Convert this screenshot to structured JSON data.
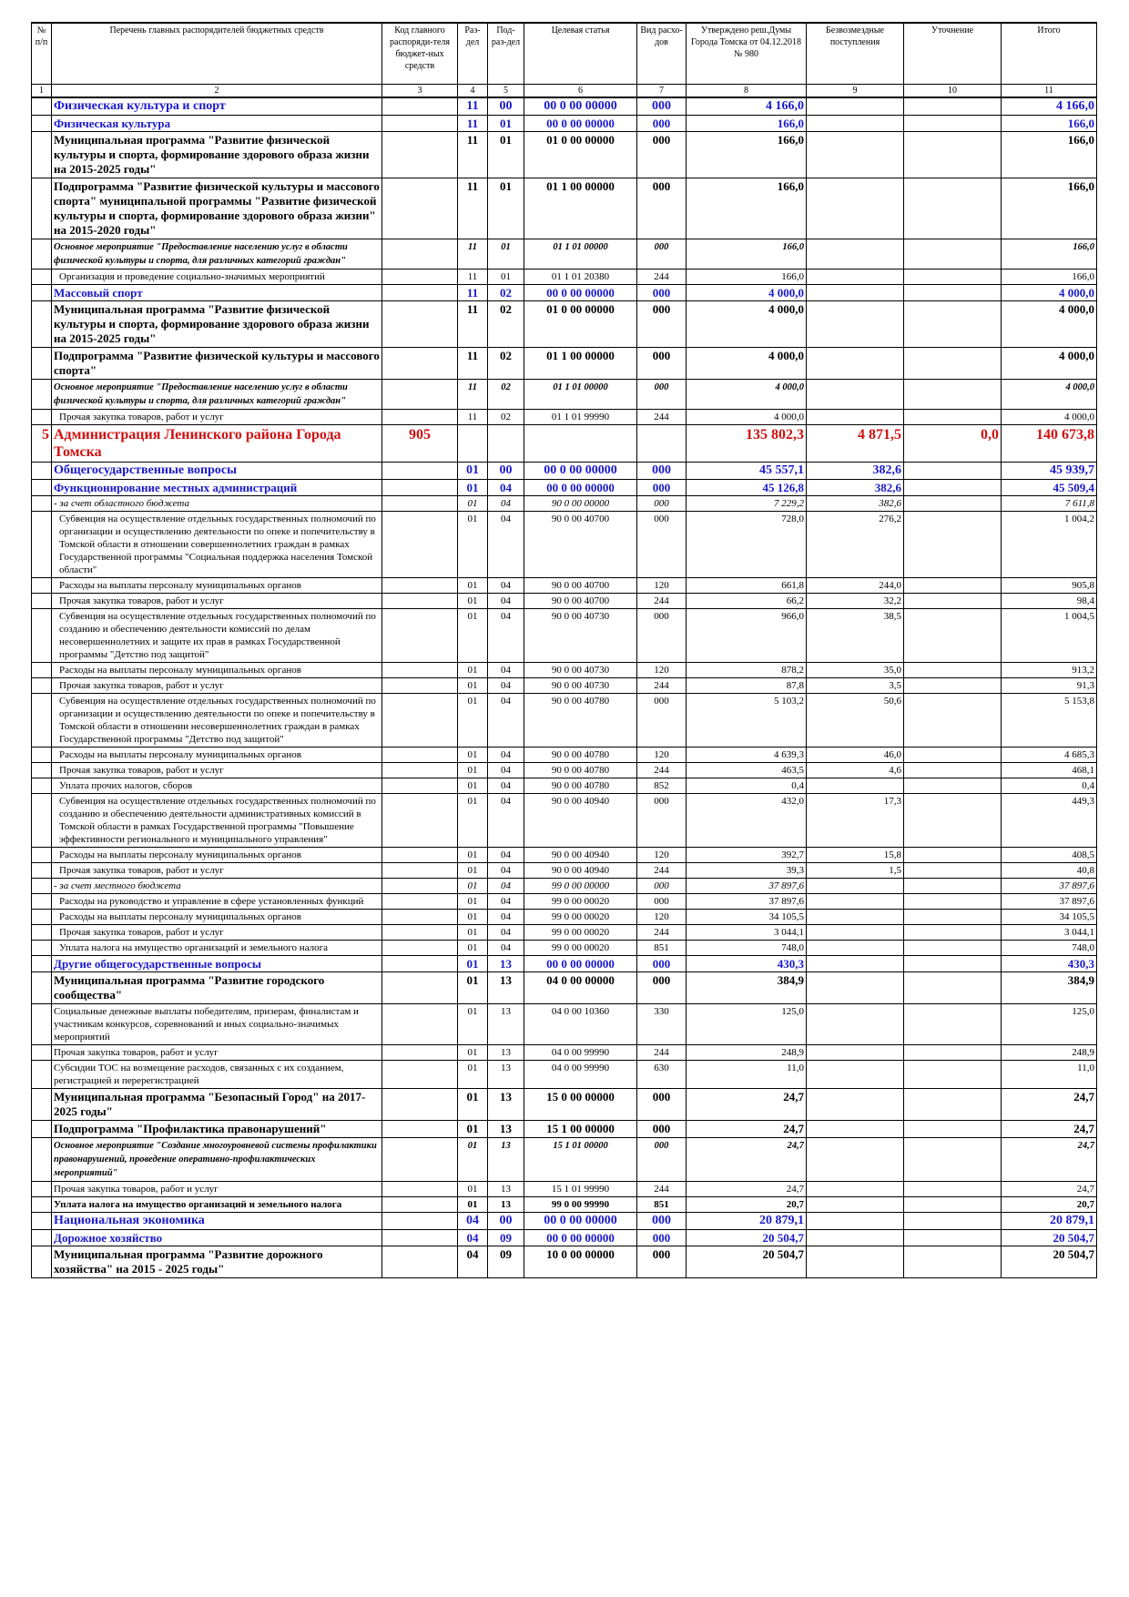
{
  "table": {
    "header": [
      "№ п/п",
      "Перечень главных распорядителей бюджетных средств",
      "Код главного распоряди-теля бюджет-ных средств",
      "Раз-дел",
      "Под-раз-дел",
      "Целевая статья",
      "Вид расхо-дов",
      "Утверждено реш.Думы Города Томска от 04.12.2018 № 980",
      "Безвозмездные поступления",
      "Уточнение",
      "Итого"
    ],
    "column_numbers": [
      1,
      2,
      3,
      4,
      5,
      6,
      7,
      8,
      9,
      10,
      11
    ],
    "rows": [
      {
        "style": "sec",
        "cells": [
          null,
          "Физическая культура и спорт",
          null,
          "11",
          "00",
          "00 0 00 00000",
          "000",
          "4 166,0",
          null,
          null,
          "4 166,0"
        ]
      },
      {
        "style": "sub",
        "cells": [
          null,
          "Физическая культура",
          null,
          "11",
          "01",
          "00 0 00 00000",
          "000",
          "166,0",
          null,
          null,
          "166,0"
        ]
      },
      {
        "style": "prog",
        "cells": [
          null,
          "Муниципальная программа \"Развитие физической культуры и спорта, формирование здорового образа жизни на 2015-2025 годы\"",
          null,
          "11",
          "01",
          "01 0 00 00000",
          "000",
          "166,0",
          null,
          null,
          "166,0"
        ]
      },
      {
        "style": "prog",
        "cells": [
          null,
          "Подпрограмма \"Развитие физической культуры и массового спорта\" муниципальной программы \"Развитие физической культуры и спорта, формирование здорового образа жизни\" на 2015-2020 годы\"",
          null,
          "11",
          "01",
          "01 1 00 00000",
          "000",
          "166,0",
          null,
          null,
          "166,0"
        ]
      },
      {
        "style": "main",
        "cells": [
          null,
          "Основное мероприятие \"Предоставление населению услуг в области физической культуры и спорта, для различных категорий граждан\"",
          null,
          "11",
          "01",
          "01 1 01 00000",
          "000",
          "166,0",
          null,
          null,
          "166,0"
        ]
      },
      {
        "style": "plain",
        "cells": [
          null,
          "Организация и проведение социально-значимых мероприятий",
          null,
          "11",
          "01",
          "01 1 01 20380",
          "244",
          "166,0",
          null,
          null,
          "166,0"
        ]
      },
      {
        "style": "sub",
        "cells": [
          null,
          "Массовый спорт",
          null,
          "11",
          "02",
          "00 0 00 00000",
          "000",
          "4 000,0",
          null,
          null,
          "4 000,0"
        ]
      },
      {
        "style": "prog",
        "cells": [
          null,
          "Муниципальная программа \"Развитие физической культуры и спорта, формирование здорового образа жизни на 2015-2025 годы\"",
          null,
          "11",
          "02",
          "01 0 00 00000",
          "000",
          "4 000,0",
          null,
          null,
          "4 000,0"
        ]
      },
      {
        "style": "prog",
        "cells": [
          null,
          "Подпрограмма \"Развитие физической культуры и массового спорта\"",
          null,
          "11",
          "02",
          "01 1 00 00000",
          "000",
          "4 000,0",
          null,
          null,
          "4 000,0"
        ]
      },
      {
        "style": "main",
        "cells": [
          null,
          "Основное мероприятие \"Предоставление населению услуг в области физической культуры и спорта, для различных категорий граждан\"",
          null,
          "11",
          "02",
          "01 1 01 00000",
          "000",
          "4 000,0",
          null,
          null,
          "4 000,0"
        ]
      },
      {
        "style": "plain",
        "cells": [
          null,
          "Прочая закупка товаров, работ и услуг",
          null,
          "11",
          "02",
          "01 1 01 99990",
          "244",
          "4 000,0",
          null,
          null,
          "4 000,0"
        ]
      },
      {
        "style": "admin",
        "cells": [
          "5",
          "Администрация Ленинского района Города Томска",
          "905",
          null,
          null,
          null,
          null,
          "135 802,3",
          "4 871,5",
          "0,0",
          "140 673,8"
        ]
      },
      {
        "style": "sec",
        "cells": [
          null,
          "Общегосударственные вопросы",
          null,
          "01",
          "00",
          "00 0 00 00000",
          "000",
          "45 557,1",
          "382,6",
          null,
          "45 939,7"
        ]
      },
      {
        "style": "sub",
        "cells": [
          null,
          "Функционирование местных администраций",
          null,
          "01",
          "04",
          "00 0 00 00000",
          "000",
          "45 126,8",
          "382,6",
          null,
          "45 509,4"
        ]
      },
      {
        "style": "italic",
        "cells": [
          null,
          "- за счет областного бюджета",
          null,
          "01",
          "04",
          "90 0 00 00000",
          "000",
          "7 229,2",
          "382,6",
          null,
          "7 611,8"
        ]
      },
      {
        "style": "plain",
        "cells": [
          null,
          "Субвенция на осуществление отдельных государственных полномочий по организации и осуществлению деятельности по опеке и попечительству в Томской области в отношении совершеннолетних граждан в рамках Государственной программы \"Социальная поддержка населения Томской области\"",
          null,
          "01",
          "04",
          "90 0 00 40700",
          "000",
          "728,0",
          "276,2",
          null,
          "1 004,2"
        ]
      },
      {
        "style": "plain",
        "cells": [
          null,
          "Расходы на выплаты персоналу муниципальных органов",
          null,
          "01",
          "04",
          "90 0 00 40700",
          "120",
          "661,8",
          "244,0",
          null,
          "905,8"
        ]
      },
      {
        "style": "plain",
        "cells": [
          null,
          "Прочая закупка товаров, работ и услуг",
          null,
          "01",
          "04",
          "90 0 00 40700",
          "244",
          "66,2",
          "32,2",
          null,
          "98,4"
        ]
      },
      {
        "style": "plain",
        "cells": [
          null,
          "Субвенция на осуществление отдельных государственных полномочий по созданию и обеспечению деятельности комиссий по делам несовершеннолетних и защите их прав в рамках Государственной программы \"Детство под защитой\"",
          null,
          "01",
          "04",
          "90 0 00 40730",
          "000",
          "966,0",
          "38,5",
          null,
          "1 004,5"
        ]
      },
      {
        "style": "plain",
        "cells": [
          null,
          "Расходы на выплаты персоналу муниципальных органов",
          null,
          "01",
          "04",
          "90 0 00 40730",
          "120",
          "878,2",
          "35,0",
          null,
          "913,2"
        ]
      },
      {
        "style": "plain",
        "cells": [
          null,
          "Прочая закупка товаров, работ и услуг",
          null,
          "01",
          "04",
          "90 0 00 40730",
          "244",
          "87,8",
          "3,5",
          null,
          "91,3"
        ]
      },
      {
        "style": "plain",
        "cells": [
          null,
          "Субвенция на осуществление отдельных государственных полномочий по организации и осуществлению деятельности по опеке и попечительству в Томской области в отношении несовершеннолетних граждан в рамках Государственной программы \"Детство под защитой\"",
          null,
          "01",
          "04",
          "90 0 00 40780",
          "000",
          "5 103,2",
          "50,6",
          null,
          "5 153,8"
        ]
      },
      {
        "style": "plain",
        "cells": [
          null,
          "Расходы на выплаты персоналу муниципальных органов",
          null,
          "01",
          "04",
          "90 0 00 40780",
          "120",
          "4 639,3",
          "46,0",
          null,
          "4 685,3"
        ]
      },
      {
        "style": "plain",
        "cells": [
          null,
          "Прочая закупка товаров, работ и услуг",
          null,
          "01",
          "04",
          "90 0 00 40780",
          "244",
          "463,5",
          "4,6",
          null,
          "468,1"
        ]
      },
      {
        "style": "plain",
        "cells": [
          null,
          "Уплата прочих налогов, сборов",
          null,
          "01",
          "04",
          "90 0 00 40780",
          "852",
          "0,4",
          null,
          null,
          "0,4"
        ]
      },
      {
        "style": "plain",
        "cells": [
          null,
          "Субвенция на осуществление отдельных государственных полномочий по созданию и обеспечению деятельности административных комиссий в Томской области в рамках Государственной программы \"Повышение эффективности регионального и муниципального управления\"",
          null,
          "01",
          "04",
          "90 0 00 40940",
          "000",
          "432,0",
          "17,3",
          null,
          "449,3"
        ]
      },
      {
        "style": "plain",
        "cells": [
          null,
          "Расходы на выплаты персоналу муниципальных органов",
          null,
          "01",
          "04",
          "90 0 00 40940",
          "120",
          "392,7",
          "15,8",
          null,
          "408,5"
        ]
      },
      {
        "style": "plain",
        "cells": [
          null,
          "Прочая закупка товаров, работ и услуг",
          null,
          "01",
          "04",
          "90 0 00 40940",
          "244",
          "39,3",
          "1,5",
          null,
          "40,8"
        ]
      },
      {
        "style": "italic",
        "cells": [
          null,
          "- за счет местного бюджета",
          null,
          "01",
          "04",
          "99 0 00 00000",
          "000",
          "37 897,6",
          null,
          null,
          "37 897,6"
        ]
      },
      {
        "style": "plain",
        "cells": [
          null,
          "Расходы на руководство и управление в сфере установленных функций",
          null,
          "01",
          "04",
          "99 0 00 00020",
          "000",
          "37 897,6",
          null,
          null,
          "37 897,6"
        ]
      },
      {
        "style": "plain",
        "cells": [
          null,
          "Расходы на выплаты персоналу муниципальных органов",
          null,
          "01",
          "04",
          "99 0 00 00020",
          "120",
          "34 105,5",
          null,
          null,
          "34 105,5"
        ]
      },
      {
        "style": "plain",
        "cells": [
          null,
          "Прочая закупка товаров, работ и услуг",
          null,
          "01",
          "04",
          "99 0 00 00020",
          "244",
          "3 044,1",
          null,
          null,
          "3 044,1"
        ]
      },
      {
        "style": "plain",
        "cells": [
          null,
          "Уплата налога на имущество организаций и земельного налога",
          null,
          "01",
          "04",
          "99 0 00 00020",
          "851",
          "748,0",
          null,
          null,
          "748,0"
        ]
      },
      {
        "style": "sub",
        "cells": [
          null,
          "Другие общегосударственные вопросы",
          null,
          "01",
          "13",
          "00 0 00 00000",
          "000",
          "430,3",
          null,
          null,
          "430,3"
        ]
      },
      {
        "style": "prog",
        "cells": [
          null,
          "Муниципальная программа \"Развитие городского сообщества\"",
          null,
          "01",
          "13",
          "04 0 00 00000",
          "000",
          "384,9",
          null,
          null,
          "384,9"
        ]
      },
      {
        "style": "flat",
        "cells": [
          null,
          "Социальные денежные выплаты победителям, призерам, финалистам и участникам конкурсов, соревнований и иных социально-значимых мероприятий",
          null,
          "01",
          "13",
          "04 0 00 10360",
          "330",
          "125,0",
          null,
          null,
          "125,0"
        ]
      },
      {
        "style": "flat",
        "cells": [
          null,
          "Прочая закупка товаров, работ и услуг",
          null,
          "01",
          "13",
          "04 0 00 99990",
          "244",
          "248,9",
          null,
          null,
          "248,9"
        ]
      },
      {
        "style": "flat",
        "cells": [
          null,
          "Субсидии ТОС на возмещение расходов, связанных с их созданием, регистрацией и перерегистрацией",
          null,
          "01",
          "13",
          "04 0 00 99990",
          "630",
          "11,0",
          null,
          null,
          "11,0"
        ]
      },
      {
        "style": "prog",
        "cells": [
          null,
          "Муниципальная программа \"Безопасный Город\" на 2017- 2025 годы\"",
          null,
          "01",
          "13",
          "15 0 00 00000",
          "000",
          "24,7",
          null,
          null,
          "24,7"
        ]
      },
      {
        "style": "prog",
        "cells": [
          null,
          "Подпрограмма \"Профилактика правонарушений\"",
          null,
          "01",
          "13",
          "15 1 00 00000",
          "000",
          "24,7",
          null,
          null,
          "24,7"
        ]
      },
      {
        "style": "main",
        "cells": [
          null,
          "Основное мероприятие \"Создание многоуровневой системы профилактики правонарушений, проведение оперативно-профилактических мероприятий\"",
          null,
          "01",
          "13",
          "15 1 01 00000",
          "000",
          "24,7",
          null,
          null,
          "24,7"
        ]
      },
      {
        "style": "flat",
        "cells": [
          null,
          "Прочая закупка товаров, работ и услуг",
          null,
          "01",
          "13",
          "15 1 01 99990",
          "244",
          "24,7",
          null,
          null,
          "24,7"
        ]
      },
      {
        "style": "tax",
        "cells": [
          null,
          "Уплата налога на имущество организаций и земельного налога",
          null,
          "01",
          "13",
          "99 0 00 99990",
          "851",
          "20,7",
          null,
          null,
          "20,7"
        ]
      },
      {
        "style": "sec",
        "cells": [
          null,
          "Национальная экономика",
          null,
          "04",
          "00",
          "00 0 00 00000",
          "000",
          "20 879,1",
          null,
          null,
          "20 879,1"
        ]
      },
      {
        "style": "sub",
        "cells": [
          null,
          "Дорожное хозяйство",
          null,
          "04",
          "09",
          "00 0 00 00000",
          "000",
          "20 504,7",
          null,
          null,
          "20 504,7"
        ]
      },
      {
        "style": "prog",
        "cells": [
          null,
          "Муниципальная программа \"Развитие дорожного хозяйства\" на 2015 - 2025 годы\"",
          null,
          "04",
          "09",
          "10 0 00 00000",
          "000",
          "20 504,7",
          null,
          null,
          "20 504,7"
        ]
      }
    ]
  }
}
